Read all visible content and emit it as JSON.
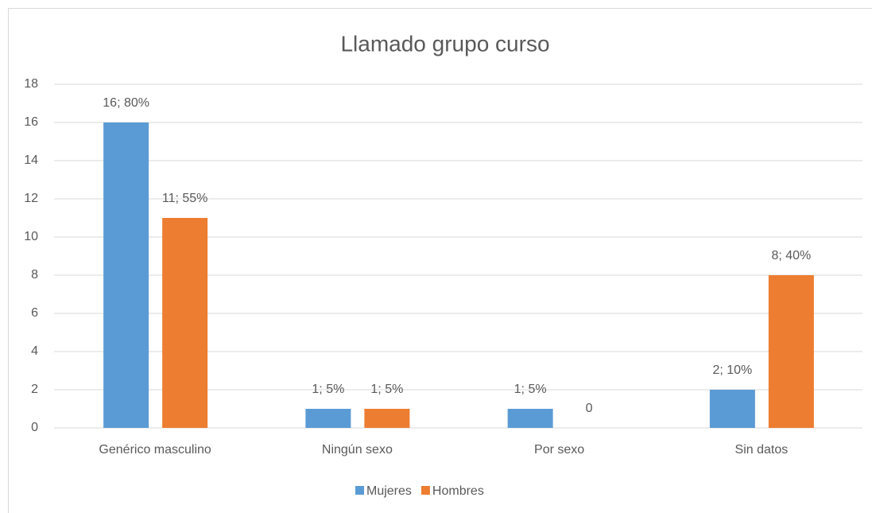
{
  "chart_data": {
    "type": "bar",
    "title": "Llamado grupo curso",
    "categories": [
      "Genérico masculino",
      "Ningún sexo",
      "Por sexo",
      "Sin datos"
    ],
    "series": [
      {
        "name": "Mujeres",
        "color": "#5b9bd5",
        "values": [
          16,
          1,
          1,
          2
        ],
        "value_labels": [
          "16; 80%",
          "1; 5%",
          "1; 5%",
          "2; 10%"
        ]
      },
      {
        "name": "Hombres",
        "color": "#ed7d31",
        "values": [
          11,
          1,
          0,
          8
        ],
        "value_labels": [
          "11; 55%",
          "1; 5%",
          "0",
          "8; 40%"
        ]
      }
    ],
    "ylim": [
      0,
      18
    ],
    "yticks": [
      0,
      2,
      4,
      6,
      8,
      10,
      12,
      14,
      16,
      18
    ],
    "grid": true,
    "legend": "bottom"
  }
}
